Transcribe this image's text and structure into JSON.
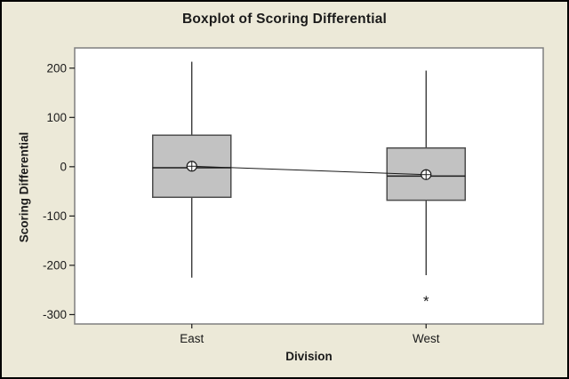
{
  "chart_data": {
    "type": "boxplot",
    "title": "Boxplot of Scoring Differential",
    "xlabel": "Division",
    "ylabel": "Scoring Differential",
    "categories": [
      "East",
      "West"
    ],
    "y_ticks": [
      200,
      100,
      0,
      -100,
      -200,
      -300
    ],
    "ylim": [
      -319,
      241
    ],
    "grid": false,
    "legend": false,
    "mean_marker": "circled-plus",
    "outlier_marker": "*",
    "mean_connect_line": true,
    "boxes": [
      {
        "category": "East",
        "whisker_low": -225,
        "q1": -62,
        "median": -2,
        "q3": 64,
        "whisker_high": 213,
        "mean": 1,
        "outliers": []
      },
      {
        "category": "West",
        "whisker_low": -220,
        "q1": -68,
        "median": -19,
        "q3": 38,
        "whisker_high": 195,
        "mean": -16,
        "outliers": [
          -272
        ]
      }
    ],
    "colors": {
      "background": "#ECE9D8",
      "plot_background": "#FFFFFF",
      "box_fill": "#C2C2C2",
      "box_stroke": "#4D4D4D",
      "line": "#1A1A1A",
      "frame": "#7F7F7F",
      "text": "#1A1A1A"
    }
  }
}
